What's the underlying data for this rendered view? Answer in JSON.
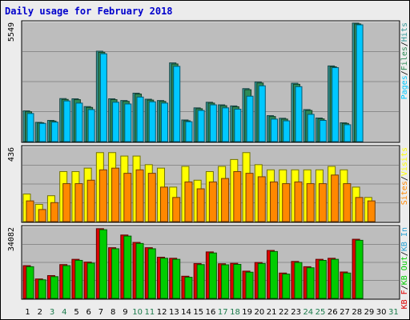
{
  "title": "Daily usage for February 2018",
  "colors": {
    "page": "#ececec",
    "panel": "#bdbdbd",
    "pages": "#00c8ff",
    "files": "#2e8b57",
    "hits": "#339999",
    "visits": "#ffff00",
    "sites": "#ff8800",
    "kb_in": "#2aa0d0",
    "kb_out": "#00cc00",
    "kb_f": "#dd0000",
    "weekday_label": "#000000",
    "weekend_label": "#1a7a4a"
  },
  "chart_data": [
    {
      "type": "bar",
      "panel": "hits-files-pages",
      "categories": [
        "1",
        "2",
        "3",
        "4",
        "5",
        "6",
        "7",
        "8",
        "9",
        "10",
        "11",
        "12",
        "13",
        "14",
        "15",
        "16",
        "17",
        "18",
        "19",
        "20",
        "21",
        "22",
        "23",
        "24",
        "25",
        "26",
        "27",
        "28",
        "29",
        "30",
        "31"
      ],
      "max_label": "5549",
      "ymax": 5549,
      "legend": [
        {
          "text": "Pages",
          "color": "#00c8ff"
        },
        {
          "text": "/",
          "color": "#000000"
        },
        {
          "text": "Files",
          "color": "#2e8b57"
        },
        {
          "text": "/",
          "color": "#000000"
        },
        {
          "text": "Hits",
          "color": "#339999"
        }
      ],
      "series": [
        {
          "key": "hits",
          "values": [
            1420,
            890,
            980,
            1990,
            1980,
            1620,
            4180,
            1980,
            1900,
            2240,
            1960,
            1900,
            3640,
            1000,
            1560,
            1820,
            1700,
            1650,
            2450,
            2760,
            1200,
            1080,
            2700,
            1480,
            1090,
            3500,
            870,
            5480,
            null,
            null,
            null
          ]
        },
        {
          "key": "files",
          "values": [
            1380,
            870,
            950,
            1950,
            1940,
            1580,
            4130,
            1940,
            1860,
            2200,
            1920,
            1860,
            3590,
            960,
            1520,
            1780,
            1660,
            1610,
            2400,
            2710,
            1160,
            1040,
            2650,
            1440,
            1050,
            3460,
            840,
            5440,
            null,
            null,
            null
          ]
        },
        {
          "key": "pages",
          "values": [
            1300,
            840,
            900,
            1880,
            1780,
            1480,
            4060,
            1820,
            1740,
            2060,
            1840,
            1780,
            3480,
            920,
            1440,
            1700,
            1560,
            1500,
            2100,
            2580,
            1040,
            960,
            2540,
            1260,
            980,
            3420,
            780,
            5400,
            null,
            null,
            null
          ]
        }
      ]
    },
    {
      "type": "bar",
      "panel": "visits-sites",
      "categories": [
        "1",
        "2",
        "3",
        "4",
        "5",
        "6",
        "7",
        "8",
        "9",
        "10",
        "11",
        "12",
        "13",
        "14",
        "15",
        "16",
        "17",
        "18",
        "19",
        "20",
        "21",
        "22",
        "23",
        "24",
        "25",
        "26",
        "27",
        "28",
        "29",
        "30",
        "31"
      ],
      "max_label": "436",
      "ymax": 436,
      "legend": [
        {
          "text": "Sites",
          "color": "#ff8800"
        },
        {
          "text": "/",
          "color": "#000000"
        },
        {
          "text": "Visits",
          "color": "#ffff00"
        }
      ],
      "series": [
        {
          "key": "visits",
          "values": [
            160,
            100,
            150,
            290,
            290,
            310,
            400,
            400,
            380,
            380,
            330,
            310,
            200,
            320,
            240,
            290,
            320,
            360,
            400,
            330,
            300,
            300,
            300,
            300,
            300,
            320,
            300,
            200,
            140,
            null,
            null
          ]
        },
        {
          "key": "sites",
          "values": [
            120,
            70,
            110,
            220,
            220,
            240,
            300,
            310,
            280,
            300,
            280,
            200,
            140,
            230,
            190,
            230,
            250,
            290,
            280,
            260,
            230,
            220,
            230,
            220,
            220,
            270,
            220,
            140,
            120,
            null,
            null
          ]
        }
      ]
    },
    {
      "type": "bar",
      "panel": "kbf-kbin-kbout",
      "categories": [
        "1",
        "2",
        "3",
        "4",
        "5",
        "6",
        "7",
        "8",
        "9",
        "10",
        "11",
        "12",
        "13",
        "14",
        "15",
        "16",
        "17",
        "18",
        "19",
        "20",
        "21",
        "22",
        "23",
        "24",
        "25",
        "26",
        "27",
        "28",
        "29",
        "30",
        "31"
      ],
      "max_label": "34082",
      "ymax": 34082,
      "legend": [
        {
          "text": "KB F",
          "color": "#dd0000"
        },
        {
          "text": "/",
          "color": "#000000"
        },
        {
          "text": "KB Out",
          "color": "#00cc00"
        },
        {
          "text": "/",
          "color": "#000000"
        },
        {
          "text": "KB In",
          "color": "#2aa0d0"
        }
      ],
      "series": [
        {
          "key": "kb_f",
          "values": [
            15500,
            9200,
            10800,
            16000,
            18500,
            17200,
            33000,
            24000,
            30000,
            26500,
            24000,
            19500,
            19000,
            10500,
            16500,
            22000,
            16400,
            16600,
            12900,
            17000,
            22700,
            12000,
            17500,
            15000,
            18500,
            19000,
            12500,
            28000,
            null,
            null,
            null
          ]
        },
        {
          "key": "kb_out",
          "values": [
            15000,
            8800,
            10300,
            15500,
            18000,
            16700,
            32500,
            23500,
            29500,
            26000,
            23500,
            19000,
            18500,
            10000,
            16000,
            21500,
            15900,
            16100,
            12400,
            16500,
            22200,
            11500,
            17000,
            14500,
            18000,
            18500,
            12000,
            27500,
            null,
            null,
            null
          ]
        }
      ]
    }
  ],
  "x_axis": {
    "labels": [
      "1",
      "2",
      "3",
      "4",
      "5",
      "6",
      "7",
      "8",
      "9",
      "10",
      "11",
      "12",
      "13",
      "14",
      "15",
      "16",
      "17",
      "18",
      "19",
      "20",
      "21",
      "22",
      "23",
      "24",
      "25",
      "26",
      "27",
      "28",
      "29",
      "30",
      "31"
    ],
    "weekend": [
      false,
      false,
      true,
      true,
      false,
      false,
      false,
      false,
      false,
      true,
      true,
      false,
      false,
      false,
      false,
      false,
      true,
      true,
      false,
      false,
      false,
      false,
      false,
      true,
      true,
      false,
      false,
      false,
      false,
      false,
      true
    ]
  }
}
